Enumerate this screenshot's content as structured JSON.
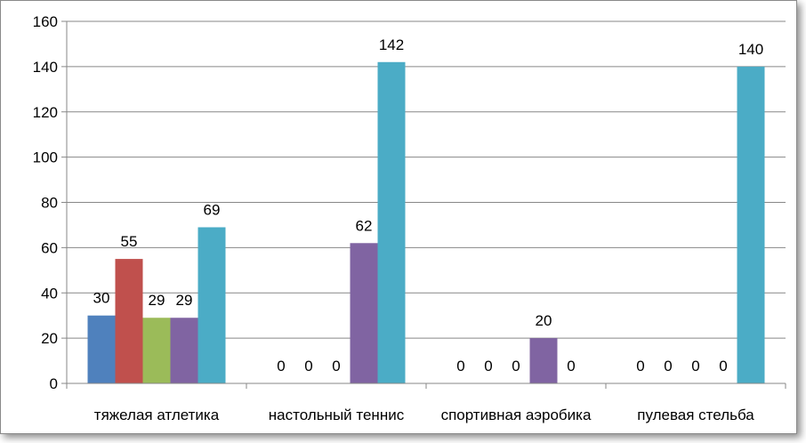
{
  "chart_data": {
    "type": "bar",
    "categories": [
      "тяжелая атлетика",
      "настольный теннис",
      "спортивная аэробика",
      "пулевая стельба"
    ],
    "series": [
      {
        "color": "#4f81bd",
        "values": [
          30,
          0,
          0,
          0
        ]
      },
      {
        "color": "#c0504d",
        "values": [
          55,
          0,
          0,
          0
        ]
      },
      {
        "color": "#9bbb59",
        "values": [
          29,
          0,
          0,
          0
        ]
      },
      {
        "color": "#8064a2",
        "values": [
          29,
          62,
          20,
          0
        ]
      },
      {
        "color": "#4bacc6",
        "values": [
          69,
          142,
          0,
          140
        ]
      }
    ],
    "ylim": [
      0,
      160
    ],
    "yticks": [
      0,
      20,
      40,
      60,
      80,
      100,
      120,
      140,
      160
    ],
    "grid": true,
    "legend": "none",
    "data_labels": [
      [
        "30",
        "55",
        "29",
        "29",
        "69"
      ],
      [
        "0",
        "0",
        "0",
        "62",
        "142"
      ],
      [
        "0",
        "0",
        "0",
        "20",
        "0"
      ],
      [
        "0",
        "0",
        "0",
        "0",
        "140"
      ]
    ]
  }
}
